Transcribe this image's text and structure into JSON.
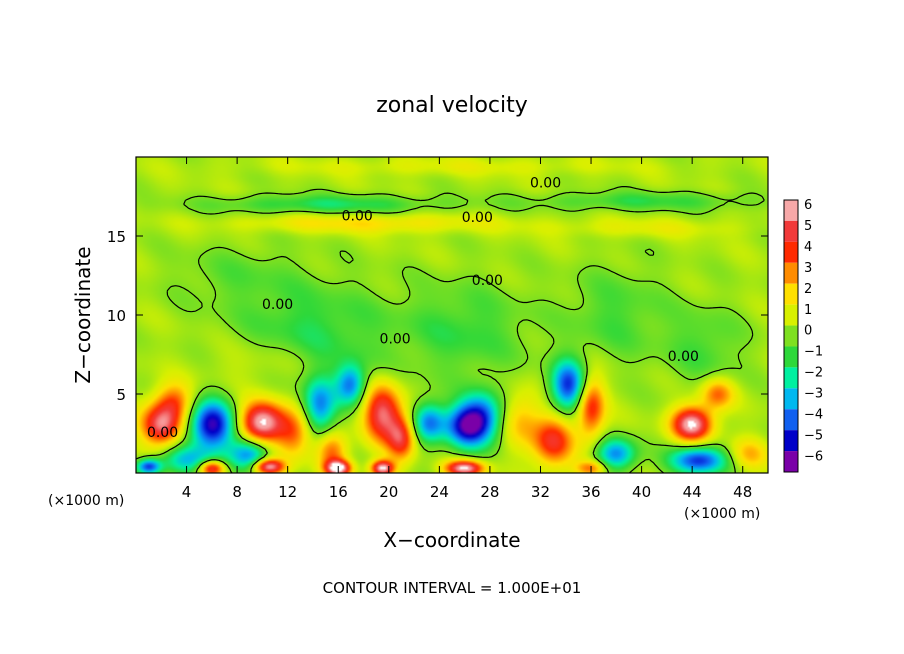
{
  "chart_data": {
    "type": "heatmap",
    "title": "zonal velocity",
    "xlabel": "X−coordinate",
    "ylabel": "Z−coordinate",
    "x_unit_left": "(×1000 m)",
    "x_unit_right": "(×1000 m)",
    "footer": "CONTOUR INTERVAL = 1.000E+01",
    "xlim": [
      0,
      50
    ],
    "ylim": [
      0,
      20
    ],
    "x_ticks": [
      4,
      8,
      12,
      16,
      20,
      24,
      28,
      32,
      36,
      40,
      44,
      48
    ],
    "y_ticks": [
      5,
      10,
      15
    ],
    "colorbar_ticks": [
      6,
      5,
      4,
      3,
      2,
      1,
      0,
      -1,
      -2,
      -3,
      -4,
      -5,
      -6
    ],
    "colorbar_colors": [
      "#f7a8a8",
      "#f23a3a",
      "#ff2a00",
      "#ff8c00",
      "#ffe000",
      "#d8f000",
      "#7ee020",
      "#2ed83a",
      "#00f0a0",
      "#00b8f0",
      "#1060f0",
      "#0000c8",
      "#7a00a8"
    ],
    "contour_labels": [
      {
        "text": "0.00",
        "x": 32.4,
        "y": 18.4
      },
      {
        "text": "0.00",
        "x": 17.5,
        "y": 16.3
      },
      {
        "text": "0.00",
        "x": 27.0,
        "y": 16.2
      },
      {
        "text": "0.00",
        "x": 27.8,
        "y": 12.2
      },
      {
        "text": "0.00",
        "x": 11.2,
        "y": 10.7
      },
      {
        "text": "0.00",
        "x": 20.5,
        "y": 8.5
      },
      {
        "text": "0.00",
        "x": 43.3,
        "y": 7.4
      },
      {
        "text": "0.00",
        "x": 2.1,
        "y": 2.6
      }
    ],
    "features": [
      {
        "x": 2,
        "z": 3,
        "value": 5,
        "sx": 1.6,
        "sy": 1.3
      },
      {
        "x": 3,
        "z": 4.5,
        "value": 3,
        "sx": 1.5,
        "sy": 1.2
      },
      {
        "x": 6,
        "z": 3,
        "value": -6,
        "sx": 1.8,
        "sy": 1.6
      },
      {
        "x": 4,
        "z": 0.8,
        "value": -3,
        "sx": 2,
        "sy": 0.9
      },
      {
        "x": 10,
        "z": 3.2,
        "value": 6,
        "sx": 1.8,
        "sy": 1.3
      },
      {
        "x": 9,
        "z": 1.2,
        "value": -4,
        "sx": 1.6,
        "sy": 1
      },
      {
        "x": 12.5,
        "z": 2.5,
        "value": 3,
        "sx": 1.4,
        "sy": 1.5
      },
      {
        "x": 14.5,
        "z": 4.2,
        "value": -4,
        "sx": 1.3,
        "sy": 1.8
      },
      {
        "x": 15.5,
        "z": 1.4,
        "value": 3,
        "sx": 1.2,
        "sy": 1.2
      },
      {
        "x": 19.5,
        "z": 3.8,
        "value": 5,
        "sx": 1.5,
        "sy": 1.8
      },
      {
        "x": 21,
        "z": 2.2,
        "value": 4,
        "sx": 1.1,
        "sy": 1.4
      },
      {
        "x": 17,
        "z": 5.6,
        "value": -4,
        "sx": 1.2,
        "sy": 1.3
      },
      {
        "x": 23.2,
        "z": 3.2,
        "value": -4,
        "sx": 1.3,
        "sy": 1.3
      },
      {
        "x": 26,
        "z": 3,
        "value": -5,
        "sx": 1.6,
        "sy": 1.4
      },
      {
        "x": 27.5,
        "z": 3.5,
        "value": -4,
        "sx": 1.6,
        "sy": 1.6
      },
      {
        "x": 30.5,
        "z": 3.4,
        "value": 2,
        "sx": 1.6,
        "sy": 1.8
      },
      {
        "x": 33,
        "z": 2,
        "value": 4,
        "sx": 1.6,
        "sy": 1.6
      },
      {
        "x": 34.2,
        "z": 5.5,
        "value": -5,
        "sx": 1.4,
        "sy": 1.6
      },
      {
        "x": 36,
        "z": 4.2,
        "value": 4,
        "sx": 1.1,
        "sy": 2
      },
      {
        "x": 38,
        "z": 1.2,
        "value": -4,
        "sx": 1.6,
        "sy": 1
      },
      {
        "x": 44,
        "z": 3.1,
        "value": 6,
        "sx": 1.6,
        "sy": 1.1
      },
      {
        "x": 44.5,
        "z": 0.8,
        "value": -5,
        "sx": 2.2,
        "sy": 0.9
      },
      {
        "x": 46,
        "z": 5,
        "value": 3,
        "sx": 1.3,
        "sy": 1
      },
      {
        "x": 48.5,
        "z": 1.2,
        "value": 2,
        "sx": 1.5,
        "sy": 1
      },
      {
        "x": 1,
        "z": 0.4,
        "value": -5,
        "sx": 1,
        "sy": 0.5
      },
      {
        "x": 6,
        "z": 0.3,
        "value": 5,
        "sx": 1,
        "sy": 0.5
      },
      {
        "x": 10.5,
        "z": 0.4,
        "value": 6,
        "sx": 1.2,
        "sy": 0.5
      },
      {
        "x": 16,
        "z": 0.3,
        "value": 6,
        "sx": 1,
        "sy": 0.5
      },
      {
        "x": 19.5,
        "z": 0.3,
        "value": 6,
        "sx": 0.9,
        "sy": 0.5
      },
      {
        "x": 26,
        "z": 0.3,
        "value": 6,
        "sx": 1.5,
        "sy": 0.5
      },
      {
        "x": 36,
        "z": 0.3,
        "value": 3,
        "sx": 1.2,
        "sy": 0.5
      },
      {
        "x": 14,
        "z": 9,
        "value": -1.6,
        "sx": 6,
        "sy": 3
      },
      {
        "x": 26,
        "z": 9,
        "value": -1.4,
        "sx": 5,
        "sy": 3
      },
      {
        "x": 38,
        "z": 10,
        "value": -1.2,
        "sx": 4,
        "sy": 3
      },
      {
        "x": 8,
        "z": 12.5,
        "value": -0.8,
        "sx": 5,
        "sy": 2
      },
      {
        "x": 45,
        "z": 8,
        "value": -1.2,
        "sx": 3,
        "sy": 2.5
      },
      {
        "x": 15,
        "z": 17,
        "value": -1.8,
        "sx": 9,
        "sy": 0.6
      },
      {
        "x": 40,
        "z": 17.2,
        "value": -1.4,
        "sx": 9,
        "sy": 0.6
      },
      {
        "x": 18,
        "z": 15.8,
        "value": 1.5,
        "sx": 10,
        "sy": 0.6
      },
      {
        "x": 40,
        "z": 15.5,
        "value": 0.8,
        "sx": 8,
        "sy": 0.6
      },
      {
        "x": 25,
        "z": 19.4,
        "value": 0.7,
        "sx": 15,
        "sy": 0.6
      },
      {
        "x": 10,
        "z": 7,
        "value": 0.8,
        "sx": 4,
        "sy": 1.5
      }
    ]
  }
}
